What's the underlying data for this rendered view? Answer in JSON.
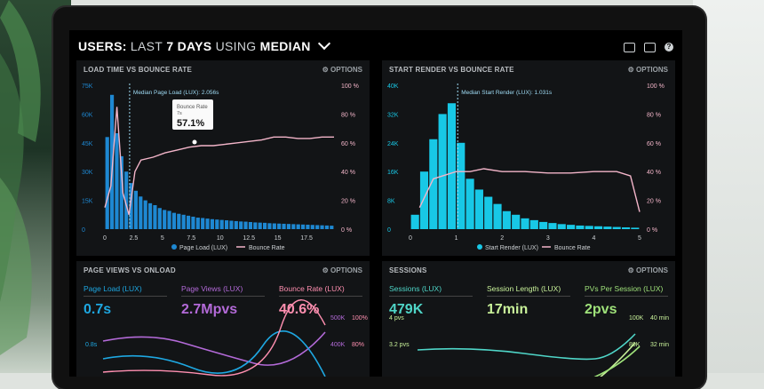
{
  "header": {
    "prefix": "USERS:",
    "middle": "LAST",
    "days": "7 DAYS",
    "using": "USING",
    "metric": "MEDIAN"
  },
  "options_label": "OPTIONS",
  "panels": {
    "load_time": {
      "title": "LOAD TIME VS BOUNCE RATE",
      "median_label": "Median Page Load (LUX): 2.056s",
      "tooltip_title": "Bounce Rate",
      "tooltip_sub": "7s",
      "tooltip_value": "57.1%",
      "legend": [
        "Page Load (LUX)",
        "Bounce Rate"
      ]
    },
    "start_render": {
      "title": "START RENDER VS BOUNCE RATE",
      "median_label": "Median Start Render (LUX): 1.031s",
      "legend": [
        "Start Render (LUX)",
        "Bounce Rate"
      ]
    },
    "page_views": {
      "title": "PAGE VIEWS VS ONLOAD",
      "metrics": [
        {
          "label": "Page Load (LUX)",
          "value": "0.7s",
          "color": "#1ea7e1"
        },
        {
          "label": "Page Views (LUX)",
          "value": "2.7Mpvs",
          "color": "#b36ad8"
        },
        {
          "label": "Bounce Rate (LUX)",
          "value": "40.6%",
          "color": "#ff8fb0"
        }
      ],
      "right_axis": [
        "500K",
        "400K"
      ],
      "right_axis2": [
        "100%",
        "80%"
      ],
      "left_axis": [
        "0.8s"
      ]
    },
    "sessions": {
      "title": "SESSIONS",
      "metrics": [
        {
          "label": "Sessions (LUX)",
          "value": "479K",
          "color": "#4fd6c8"
        },
        {
          "label": "Session Length (LUX)",
          "value": "17min",
          "color": "#c9f29a"
        },
        {
          "label": "PVs Per Session (LUX)",
          "value": "2pvs",
          "color": "#9fe27a"
        }
      ],
      "left_axis": [
        "4 pvs",
        "3.2 pvs"
      ],
      "right_axis": [
        "100K",
        "80K"
      ],
      "right_axis2": [
        "40 min",
        "32 min"
      ]
    }
  },
  "chart_data": [
    {
      "type": "bar",
      "title": "LOAD TIME VS BOUNCE RATE",
      "x_ticks": [
        "0",
        "2.5",
        "5",
        "7.5",
        "10",
        "12.5",
        "15",
        "17.5"
      ],
      "y_left_ticks": [
        "75K",
        "60K",
        "45K",
        "30K",
        "15K",
        "0"
      ],
      "y_right_ticks": [
        "100 %",
        "80 %",
        "60 %",
        "40 %",
        "20 %",
        "0 %"
      ],
      "ylim_left": [
        0,
        75000
      ],
      "ylim_right": [
        0,
        100
      ],
      "series": [
        {
          "name": "Page Load (LUX)",
          "type": "bar",
          "color": "#1e88d2",
          "values": [
            48000,
            70000,
            50000,
            38000,
            30000,
            24000,
            20000,
            17000,
            15000,
            13500,
            12500,
            11000,
            10000,
            9500,
            8500,
            8000,
            7500,
            7000,
            6500,
            6000,
            5800,
            5500,
            5200,
            5000,
            4800,
            4600,
            4400,
            4200,
            4000,
            3900,
            3700,
            3500,
            3400,
            3300,
            3100,
            3000,
            2900,
            2800,
            2700,
            2600,
            2500,
            2400,
            2300,
            2200,
            2100,
            2000,
            1900,
            1800
          ]
        },
        {
          "name": "Bounce Rate",
          "type": "line",
          "color": "#f3b5c9",
          "x": [
            0,
            0.5,
            1,
            1.5,
            2,
            2.5,
            3,
            4,
            5,
            6,
            7,
            8,
            9,
            10,
            11,
            12,
            13,
            14,
            15,
            16,
            17,
            18,
            19
          ],
          "values": [
            15,
            30,
            85,
            25,
            10,
            40,
            48,
            50,
            53,
            55,
            57,
            58,
            58,
            59,
            60,
            61,
            62,
            64,
            64,
            63,
            63,
            64,
            64
          ]
        }
      ],
      "median_x": 2.056
    },
    {
      "type": "bar",
      "title": "START RENDER VS BOUNCE RATE",
      "x_ticks": [
        "0",
        "1",
        "2",
        "3",
        "4",
        "5"
      ],
      "y_left_ticks": [
        "40K",
        "32K",
        "24K",
        "16K",
        "8K",
        "0"
      ],
      "y_right_ticks": [
        "100 %",
        "80 %",
        "60 %",
        "40 %",
        "20 %",
        "0 %"
      ],
      "ylim_left": [
        0,
        40000
      ],
      "ylim_right": [
        0,
        100
      ],
      "series": [
        {
          "name": "Start Render (LUX)",
          "type": "bar",
          "color": "#18c8e6",
          "values": [
            4000,
            16000,
            25000,
            32000,
            35000,
            24000,
            14000,
            11000,
            9000,
            7000,
            5000,
            4000,
            3000,
            2500,
            2000,
            1700,
            1400,
            1200,
            1000,
            900,
            800,
            700,
            600,
            500,
            400
          ]
        },
        {
          "name": "Bounce Rate",
          "type": "line",
          "color": "#f3b5c9",
          "x": [
            0.2,
            0.5,
            0.8,
            1.0,
            1.3,
            1.6,
            2,
            2.5,
            3,
            3.5,
            4,
            4.5,
            4.8,
            5
          ],
          "values": [
            15,
            35,
            38,
            40,
            40,
            42,
            40,
            40,
            39,
            39,
            40,
            40,
            37,
            12
          ]
        }
      ],
      "median_x": 1.031
    }
  ]
}
